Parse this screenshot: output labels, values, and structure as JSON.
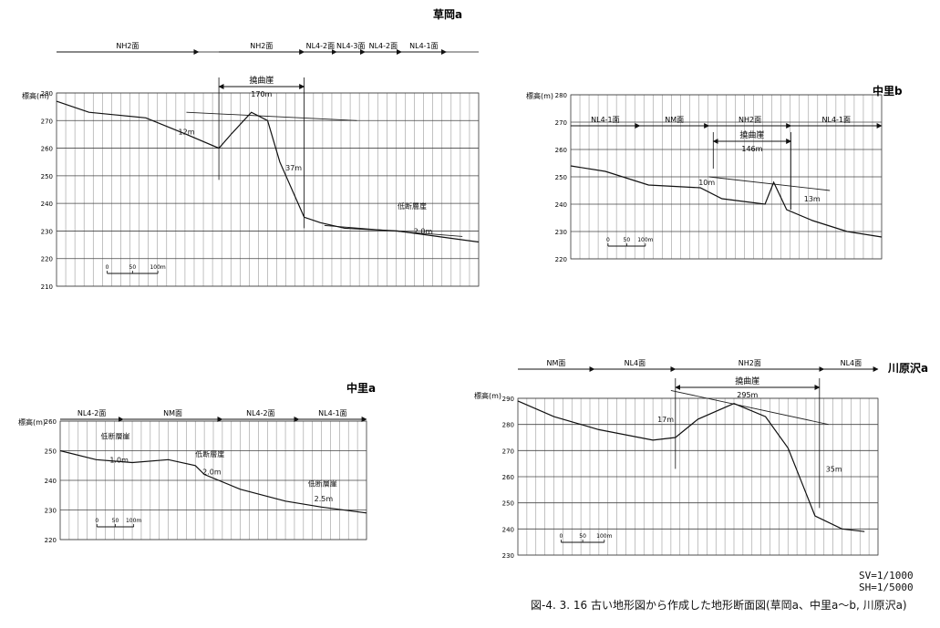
{
  "figure": {
    "caption": "図-4. 3. 16 古い地形図から作成した地形断面図(草岡a、中里a〜b, 川原沢a)",
    "scale_vertical": "SV=1/1000",
    "scale_horizontal": "SH=1/5000"
  },
  "chart_data": [
    {
      "id": "kusaoka_a",
      "type": "line",
      "title": "草岡a",
      "ylabel": "標高(m)",
      "ylim": [
        210,
        280
      ],
      "yticks": [
        210,
        220,
        230,
        240,
        250,
        260,
        270,
        280
      ],
      "profile": [
        [
          0,
          277
        ],
        [
          40,
          273
        ],
        [
          110,
          271
        ],
        [
          160,
          265
        ],
        [
          200,
          260
        ],
        [
          215,
          265
        ],
        [
          240,
          273
        ],
        [
          260,
          270
        ],
        [
          275,
          255
        ],
        [
          305,
          235
        ],
        [
          325,
          233
        ],
        [
          355,
          231
        ],
        [
          420,
          230
        ],
        [
          470,
          228
        ],
        [
          520,
          226
        ]
      ],
      "tangents": [
        [
          [
            160,
            273
          ],
          [
            370,
            270
          ]
        ],
        [
          [
            330,
            232
          ],
          [
            500,
            228
          ]
        ]
      ],
      "surfaces": [
        {
          "label": "NH2面",
          "from": 0,
          "to": 175
        },
        {
          "label": "NH2面",
          "from": 200,
          "to": 305
        },
        {
          "label": "NL4-2面",
          "from": 305,
          "to": 345
        },
        {
          "label": "NL4-3面",
          "from": 345,
          "to": 380
        },
        {
          "label": "NL4-2面",
          "from": 380,
          "to": 425
        },
        {
          "label": "NL4-1面",
          "from": 425,
          "to": 480
        }
      ],
      "flexure": {
        "label": "撓曲崖",
        "from": 200,
        "to": 305,
        "width_label": "170m"
      },
      "annotations": [
        {
          "text": "12m",
          "x": 150,
          "y": 265
        },
        {
          "text": "37m",
          "x": 282,
          "y": 252
        },
        {
          "text": "低断層崖",
          "x": 420,
          "y": 238
        },
        {
          "text": "2.0m",
          "x": 440,
          "y": 229
        }
      ],
      "scalebar": {
        "labels": [
          "0",
          "50",
          "100m"
        ]
      }
    },
    {
      "id": "nakazato_b",
      "type": "line",
      "title": "中里b",
      "ylabel": "標高(m)",
      "ylim": [
        220,
        280
      ],
      "yticks": [
        220,
        230,
        240,
        250,
        260,
        270,
        280
      ],
      "profile": [
        [
          0,
          254
        ],
        [
          40,
          252
        ],
        [
          90,
          247
        ],
        [
          150,
          246
        ],
        [
          175,
          242
        ],
        [
          200,
          241
        ],
        [
          225,
          240
        ],
        [
          235,
          248
        ],
        [
          250,
          238
        ],
        [
          280,
          234
        ],
        [
          320,
          230
        ],
        [
          360,
          228
        ]
      ],
      "tangents": [
        [
          [
            160,
            250
          ],
          [
            300,
            245
          ]
        ]
      ],
      "surfaces": [
        {
          "label": "NL4-1面",
          "from": 0,
          "to": 80
        },
        {
          "label": "NM面",
          "from": 80,
          "to": 160
        },
        {
          "label": "NH2面",
          "from": 160,
          "to": 255
        },
        {
          "label": "NL4-1面",
          "from": 255,
          "to": 360
        }
      ],
      "flexure": {
        "label": "撓曲崖",
        "from": 165,
        "to": 255,
        "width_label": "146m"
      },
      "annotations": [
        {
          "text": "10m",
          "x": 148,
          "y": 247
        },
        {
          "text": "13m",
          "x": 270,
          "y": 241
        }
      ],
      "scalebar": {
        "labels": [
          "0",
          "50",
          "100m"
        ]
      }
    },
    {
      "id": "nakazato_a",
      "type": "line",
      "title": "中里a",
      "ylabel": "標高(m)",
      "ylim": [
        220,
        260
      ],
      "yticks": [
        220,
        230,
        240,
        250,
        260
      ],
      "profile": [
        [
          0,
          250
        ],
        [
          40,
          247
        ],
        [
          80,
          246
        ],
        [
          120,
          247
        ],
        [
          150,
          245
        ],
        [
          160,
          242
        ],
        [
          200,
          237
        ],
        [
          250,
          233
        ],
        [
          290,
          231
        ],
        [
          340,
          229
        ]
      ],
      "tangents": [],
      "surfaces": [
        {
          "label": "NL4-2面",
          "from": 0,
          "to": 70
        },
        {
          "label": "NM面",
          "from": 70,
          "to": 180
        },
        {
          "label": "NL4-2面",
          "from": 180,
          "to": 265
        },
        {
          "label": "NL4-1面",
          "from": 265,
          "to": 340
        }
      ],
      "annotations": [
        {
          "text": "低断層崖",
          "x": 45,
          "y": 254
        },
        {
          "text": "1.0m",
          "x": 55,
          "y": 246
        },
        {
          "text": "低断層崖",
          "x": 150,
          "y": 248
        },
        {
          "text": "2.0m",
          "x": 158,
          "y": 242
        },
        {
          "text": "低断層崖",
          "x": 275,
          "y": 238
        },
        {
          "text": "2.5m",
          "x": 282,
          "y": 233
        }
      ],
      "scalebar": {
        "labels": [
          "0",
          "50",
          "100m"
        ]
      }
    },
    {
      "id": "kawarazawa_a",
      "type": "line",
      "title": "川原沢a",
      "ylabel": "標高(m)",
      "ylim": [
        230,
        290
      ],
      "yticks": [
        230,
        240,
        250,
        260,
        270,
        280,
        290
      ],
      "profile": [
        [
          0,
          289
        ],
        [
          40,
          283
        ],
        [
          90,
          278
        ],
        [
          150,
          274
        ],
        [
          175,
          275
        ],
        [
          200,
          282
        ],
        [
          240,
          288
        ],
        [
          275,
          283
        ],
        [
          300,
          271
        ],
        [
          315,
          258
        ],
        [
          330,
          245
        ],
        [
          360,
          240
        ],
        [
          385,
          239
        ]
      ],
      "tangents": [
        [
          [
            170,
            293
          ],
          [
            345,
            280
          ]
        ]
      ],
      "surfaces": [
        {
          "label": "NM面",
          "from": 0,
          "to": 85
        },
        {
          "label": "NL4面",
          "from": 85,
          "to": 175
        },
        {
          "label": "NH2面",
          "from": 175,
          "to": 340
        },
        {
          "label": "NL4面",
          "from": 340,
          "to": 400
        }
      ],
      "flexure": {
        "label": "撓曲崖",
        "from": 175,
        "to": 335,
        "width_label": "295m"
      },
      "annotations": [
        {
          "text": "17m",
          "x": 155,
          "y": 281
        },
        {
          "text": "35m",
          "x": 342,
          "y": 262
        }
      ],
      "scalebar": {
        "labels": [
          "0",
          "50",
          "100m"
        ]
      }
    }
  ]
}
